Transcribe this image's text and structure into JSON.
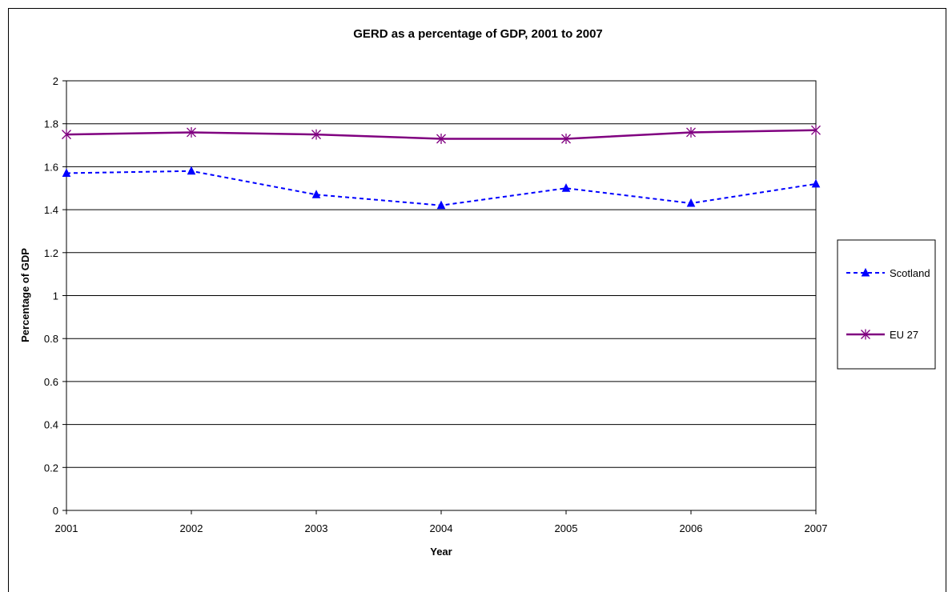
{
  "chart_data": {
    "type": "line",
    "title": "GERD as a percentage of GDP, 2001 to 2007",
    "xlabel": "Year",
    "ylabel": "Percentage of GDP",
    "x": [
      "2001",
      "2002",
      "2003",
      "2004",
      "2005",
      "2006",
      "2007"
    ],
    "ylim": [
      0,
      2
    ],
    "yticks": [
      "0",
      "0.2",
      "0.4",
      "0.6",
      "0.8",
      "1",
      "1.2",
      "1.4",
      "1.6",
      "1.8",
      "2"
    ],
    "grid": true,
    "legend_position": "right",
    "series": [
      {
        "name": "Scotland",
        "values": [
          1.57,
          1.58,
          1.47,
          1.42,
          1.5,
          1.43,
          1.52
        ],
        "color": "#0000FF",
        "style": "dashed",
        "marker": "triangle"
      },
      {
        "name": "EU 27",
        "values": [
          1.75,
          1.76,
          1.75,
          1.73,
          1.73,
          1.76,
          1.77
        ],
        "color": "#800080",
        "style": "solid",
        "marker": "star"
      }
    ]
  }
}
